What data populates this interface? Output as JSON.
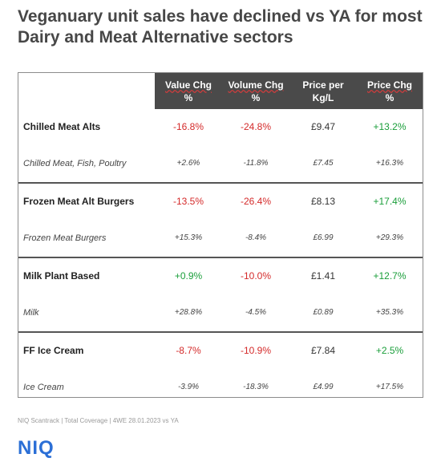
{
  "title": "Veganuary unit sales have declined vs YA for most Dairy and Meat Alternative sectors",
  "headers": {
    "value_chg": "Value Chg",
    "value_chg_unit": "%",
    "volume_chg": "Volume Chg",
    "volume_chg_unit": "%",
    "price_per": "Price per",
    "price_per_unit": "Kg/L",
    "price_chg": "Price Chg",
    "price_chg_unit": "%"
  },
  "rows": [
    {
      "label": "Chilled Meat Alts",
      "value": "-16.8%",
      "volume": "-24.8%",
      "price": "£9.47",
      "price_chg": "+13.2%"
    },
    {
      "label": "Chilled Meat, Fish, Poultry",
      "value": "+2.6%",
      "volume": "-11.8%",
      "price": "£7.45",
      "price_chg": "+16.3%"
    },
    {
      "label": "Frozen Meat Alt Burgers",
      "value": "-13.5%",
      "volume": "-26.4%",
      "price": "£8.13",
      "price_chg": "+17.4%"
    },
    {
      "label": "Frozen Meat Burgers",
      "value": "+15.3%",
      "volume": "-8.4%",
      "price": "£6.99",
      "price_chg": "+29.3%"
    },
    {
      "label": "Milk Plant Based",
      "value": "+0.9%",
      "volume": "-10.0%",
      "price": "£1.41",
      "price_chg": "+12.7%"
    },
    {
      "label": "Milk",
      "value": "+28.8%",
      "volume": "-4.5%",
      "price": "£0.89",
      "price_chg": "+35.3%"
    },
    {
      "label": "FF Ice Cream",
      "value": "-8.7%",
      "volume": "-10.9%",
      "price": "£7.84",
      "price_chg": "+2.5%"
    },
    {
      "label": "Ice Cream",
      "value": "-3.9%",
      "volume": "-18.3%",
      "price": "£4.99",
      "price_chg": "+17.5%"
    }
  ],
  "colors": {
    "negative": "#d42a2a",
    "positive": "#1a9e3a",
    "header_bg": "#4a4a4a",
    "logo": "#2b6fd6"
  },
  "footer": "NIQ Scantrack | Total Coverage | 4WE 28.01.2023 vs YA",
  "logo": "NIQ"
}
